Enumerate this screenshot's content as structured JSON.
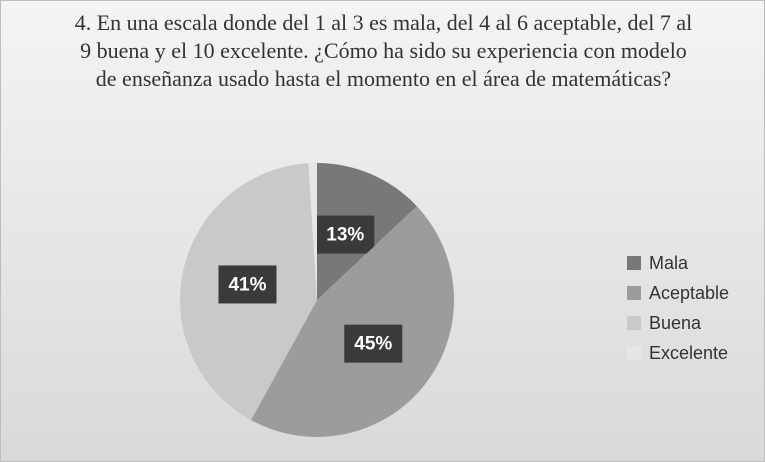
{
  "chart_data": {
    "type": "pie",
    "title": "4. En una escala donde del 1 al 3 es mala, del 4 al 6 aceptable, del 7 al 9 buena y el 10 excelente. ¿Cómo ha sido su experiencia con modelo de enseñanza usado hasta el momento en el área de matemáticas?",
    "categories": [
      "Mala",
      "Aceptable",
      "Buena",
      "Excelente"
    ],
    "values": [
      13,
      45,
      41,
      1
    ],
    "value_labels": [
      "13%",
      "45%",
      "41%",
      null
    ],
    "colors": [
      "#787878",
      "#9c9c9c",
      "#c9c9c9",
      "#e6e6e6"
    ],
    "legend": "right"
  }
}
